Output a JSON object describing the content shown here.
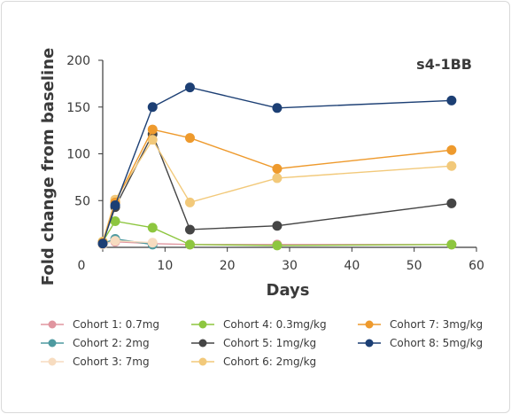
{
  "chart_data": {
    "type": "line",
    "title": "s4-1BB",
    "xlabel": "Days",
    "ylabel": "Fold change from baseline",
    "xlim": [
      0,
      60
    ],
    "ylim": [
      0,
      200
    ],
    "xticks": [
      0,
      10,
      20,
      30,
      40,
      50,
      60
    ],
    "yticks": [
      50,
      100,
      150,
      200
    ],
    "grid": false,
    "legend_position": "bottom",
    "series": [
      {
        "name": "Cohort 1: 0.7mg",
        "color": "#e0959f",
        "x": [
          0,
          2,
          8,
          14,
          28,
          56
        ],
        "y": [
          5,
          6,
          4,
          3,
          3,
          3
        ]
      },
      {
        "name": "Cohort 2: 2mg",
        "color": "#4e9aa0",
        "x": [
          0,
          2,
          8
        ],
        "y": [
          4,
          9,
          3
        ]
      },
      {
        "name": "Cohort 3: 7mg",
        "color": "#f7dcc0",
        "x": [
          0,
          2,
          8
        ],
        "y": [
          3,
          7,
          5
        ]
      },
      {
        "name": "Cohort 4: 0.3mg/kg",
        "color": "#8dc63f",
        "x": [
          0,
          2,
          8,
          14,
          28,
          56
        ],
        "y": [
          6,
          28,
          21,
          3,
          2,
          3
        ]
      },
      {
        "name": "Cohort 5: 1mg/kg",
        "color": "#454545",
        "x": [
          0,
          2,
          8,
          14,
          28,
          56
        ],
        "y": [
          5,
          43,
          121,
          19,
          23,
          47
        ]
      },
      {
        "name": "Cohort 6: 2mg/kg",
        "color": "#f2c97a",
        "x": [
          0,
          2,
          8,
          14,
          28,
          56
        ],
        "y": [
          6,
          51,
          115,
          48,
          74,
          87
        ]
      },
      {
        "name": "Cohort 7: 3mg/kg",
        "color": "#ee9a2d",
        "x": [
          0,
          2,
          8,
          14,
          28,
          56
        ],
        "y": [
          5,
          48,
          126,
          117,
          84,
          104
        ]
      },
      {
        "name": "Cohort 8: 5mg/kg",
        "color": "#1c3f74",
        "x": [
          0,
          2,
          8,
          14,
          28,
          56
        ],
        "y": [
          4,
          45,
          150,
          171,
          149,
          157
        ]
      }
    ]
  }
}
